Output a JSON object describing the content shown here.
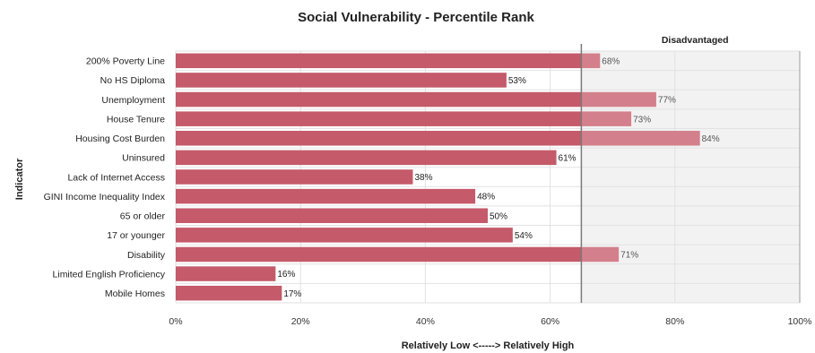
{
  "chart_data": {
    "type": "bar",
    "orientation": "horizontal",
    "title": "Social Vulnerability - Percentile Rank",
    "xlabel": "Relatively Low <-----> Relatively High",
    "ylabel": "Indicator",
    "xlim": [
      0,
      100
    ],
    "x_ticks": [
      "0%",
      "20%",
      "40%",
      "60%",
      "80%",
      "100%"
    ],
    "x_tick_values": [
      0,
      20,
      40,
      60,
      80,
      100
    ],
    "grid": true,
    "threshold": {
      "label": "Disadvantaged",
      "value": 65
    },
    "categories": [
      "200% Poverty Line",
      "No HS Diploma",
      "Unemployment",
      "House Tenure",
      "Housing Cost Burden",
      "Uninsured",
      "Lack of Internet Access",
      "GINI Income Inequality Index",
      "65 or older",
      "17 or younger",
      "Disability",
      "Limited English Proficiency",
      "Mobile Homes"
    ],
    "values": [
      68,
      53,
      77,
      73,
      84,
      61,
      38,
      48,
      50,
      54,
      71,
      16,
      17
    ],
    "data_labels": [
      "68%",
      "53%",
      "77%",
      "73%",
      "84%",
      "61%",
      "38%",
      "48%",
      "50%",
      "54%",
      "71%",
      "16%",
      "17%"
    ],
    "colors": {
      "bar": "#c45a6a",
      "bar_in_zone": "#d4808c",
      "zone_fill": "#f2f2f2",
      "threshold_line": "#7a7a7a",
      "grid": "#e2e2e2"
    }
  }
}
